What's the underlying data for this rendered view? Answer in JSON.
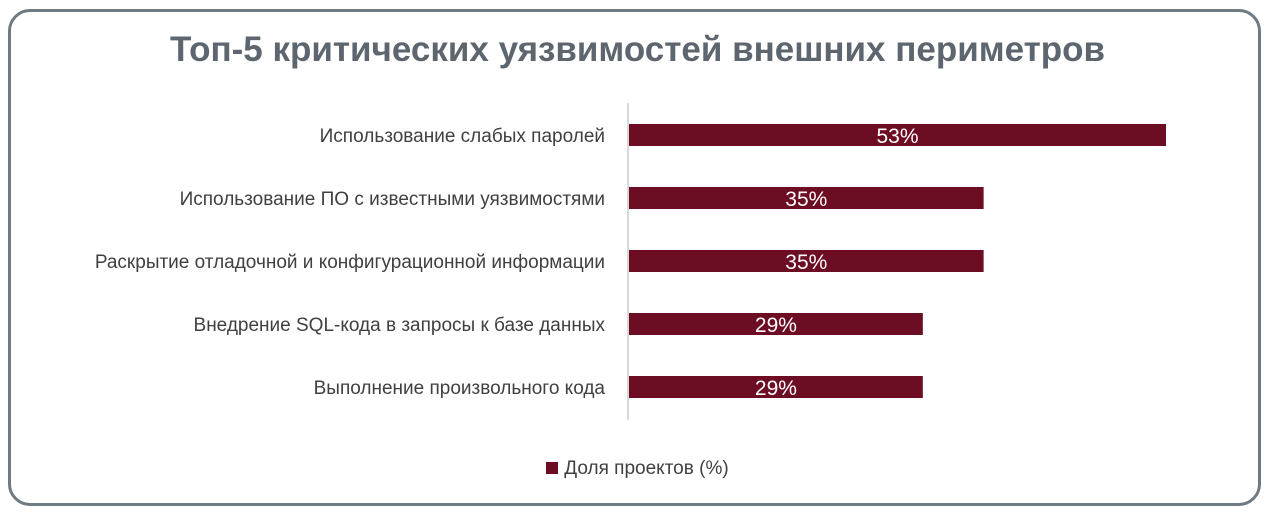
{
  "chart_data": {
    "type": "bar",
    "orientation": "horizontal",
    "title": "Топ-5 критических уязвимостей внешних периметров",
    "categories": [
      "Использование слабых паролей",
      "Использование ПО с известными уязвимостями",
      "Раскрытие отладочной и конфигурационной информации",
      "Внедрение SQL-кода в запросы к базе данных",
      "Выполнение произвольного кода"
    ],
    "series": [
      {
        "name": "Доля проектов (%)",
        "values": [
          53,
          35,
          35,
          29,
          29
        ],
        "labels": [
          "53%",
          "35%",
          "35%",
          "29%",
          "29%"
        ],
        "color": "#6d0d24"
      }
    ],
    "xlim": [
      0,
      60
    ],
    "grid": false,
    "legend_position": "bottom"
  },
  "colors": {
    "frame_border": "#6f7a83",
    "title": "#5d666e",
    "axis_line": "#d9d9d9"
  }
}
